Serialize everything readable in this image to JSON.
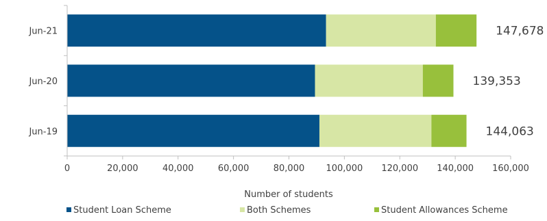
{
  "chart_data": {
    "type": "bar",
    "orientation": "horizontal",
    "stacked": true,
    "categories": [
      "Jun-21",
      "Jun-20",
      "Jun-19"
    ],
    "series": [
      {
        "name": "Student Loan Scheme",
        "values": [
          93400,
          89400,
          91000
        ],
        "color": "#055289"
      },
      {
        "name": "Both Schemes",
        "values": [
          39600,
          38900,
          40400
        ],
        "color": "#d7e6a5"
      },
      {
        "name": "Student Allowances Scheme",
        "values": [
          14678,
          11053,
          12663
        ],
        "color": "#98c03c"
      }
    ],
    "totals": [
      "147,678",
      "139,353",
      "144,063"
    ],
    "xlabel": "Number  of students",
    "xlim": [
      0,
      160000
    ],
    "xticks": [
      "0",
      "20,000",
      "40,000",
      "60,000",
      "80,000",
      "100,000",
      "120,000",
      "140,000",
      "160,000"
    ],
    "grid": false,
    "legend_position": "bottom"
  }
}
